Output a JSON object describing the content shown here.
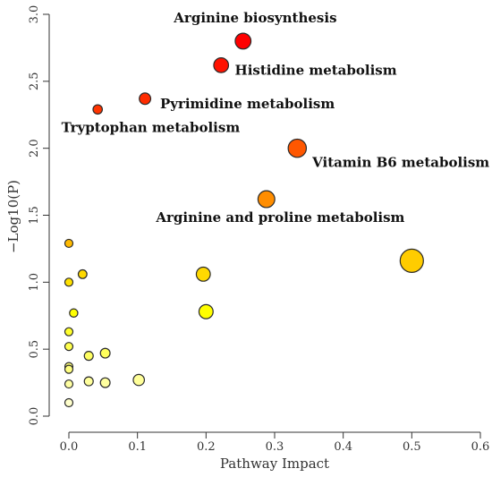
{
  "chart_data": {
    "type": "scatter",
    "xlabel": "Pathway Impact",
    "ylabel": "−Log10(P)",
    "xlim": [
      0,
      0.6
    ],
    "ylim": [
      0,
      3.0
    ],
    "xticks": [
      "0.0",
      "0.1",
      "0.2",
      "0.3",
      "0.4",
      "0.5",
      "0.6"
    ],
    "yticks": [
      "0.0",
      "0.5",
      "1.0",
      "1.5",
      "2.0",
      "2.5",
      "3.0"
    ],
    "grid": false,
    "legend": "none",
    "points": [
      {
        "x": 0.254,
        "y": 2.8
      },
      {
        "x": 0.222,
        "y": 2.62
      },
      {
        "x": 0.111,
        "y": 2.37
      },
      {
        "x": 0.042,
        "y": 2.29
      },
      {
        "x": 0.333,
        "y": 2.0
      },
      {
        "x": 0.288,
        "y": 1.62
      },
      {
        "x": 0.5,
        "y": 1.16
      },
      {
        "x": 0.0,
        "y": 1.29
      },
      {
        "x": 0.02,
        "y": 1.06
      },
      {
        "x": 0.0,
        "y": 1.0
      },
      {
        "x": 0.196,
        "y": 1.06
      },
      {
        "x": 0.2,
        "y": 0.78
      },
      {
        "x": 0.007,
        "y": 0.77
      },
      {
        "x": 0.0,
        "y": 0.63
      },
      {
        "x": 0.0,
        "y": 0.52
      },
      {
        "x": 0.053,
        "y": 0.47
      },
      {
        "x": 0.029,
        "y": 0.45
      },
      {
        "x": 0.0,
        "y": 0.37
      },
      {
        "x": 0.0,
        "y": 0.35
      },
      {
        "x": 0.102,
        "y": 0.27
      },
      {
        "x": 0.029,
        "y": 0.26
      },
      {
        "x": 0.053,
        "y": 0.25
      },
      {
        "x": 0.0,
        "y": 0.24
      },
      {
        "x": 0.0,
        "y": 0.1
      }
    ],
    "annotations": [
      {
        "text": "Arginine biosynthesis",
        "x": 0.153,
        "y": 2.94
      },
      {
        "text": "Histidine metabolism",
        "x": 0.242,
        "y": 2.55
      },
      {
        "text": "Pyrimidine metabolism",
        "x": 0.133,
        "y": 2.3
      },
      {
        "text": "Tryptophan metabolism",
        "x": -0.011,
        "y": 2.12
      },
      {
        "text": "Vitamin B6 metabolism",
        "x": 0.355,
        "y": 1.86
      },
      {
        "text": "Arginine and proline metabolism",
        "x": 0.127,
        "y": 1.45
      }
    ],
    "colors": {
      "axis": "#333333",
      "point_stroke": "#2a2a2a",
      "color_scale": [
        "#ffffcc",
        "#ffff00",
        "#ffa500",
        "#ff4500",
        "#ff0000"
      ]
    }
  }
}
